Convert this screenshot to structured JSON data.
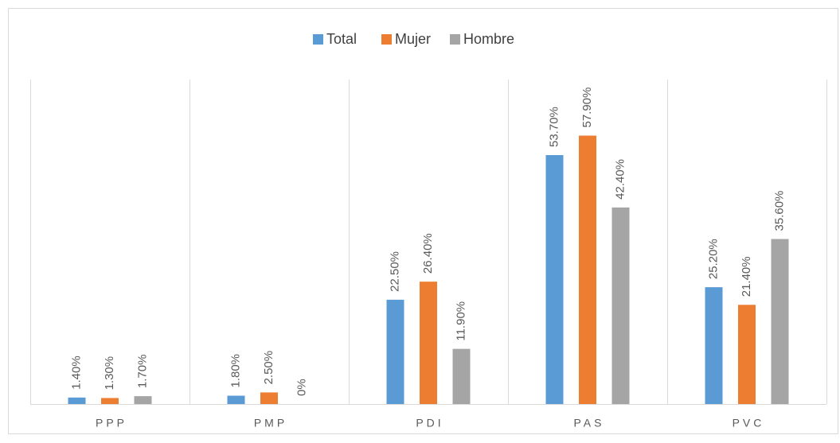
{
  "chart_data": {
    "type": "bar",
    "categories": [
      "PPP",
      "PMP",
      "PDI",
      "PAS",
      "PVC"
    ],
    "series": [
      {
        "name": "Total",
        "color": "#5b9bd5",
        "values": [
          1.4,
          1.8,
          22.5,
          53.7,
          25.2
        ],
        "value_labels": [
          "1.40%",
          "1.80%",
          "22.50%",
          "53.70%",
          "25.20%"
        ]
      },
      {
        "name": "Mujer",
        "color": "#ed7d31",
        "values": [
          1.3,
          2.5,
          26.4,
          57.9,
          21.4
        ],
        "value_labels": [
          "1.30%",
          "2.50%",
          "26.40%",
          "57.90%",
          "21.40%"
        ]
      },
      {
        "name": "Hombre",
        "color": "#a5a5a5",
        "values": [
          1.7,
          0,
          11.9,
          42.4,
          35.6
        ],
        "value_labels": [
          "1.70%",
          "0%",
          "11.90%",
          "42.40%",
          "35.60%"
        ]
      }
    ],
    "ylim": [
      0,
      70
    ],
    "legend": "top"
  }
}
